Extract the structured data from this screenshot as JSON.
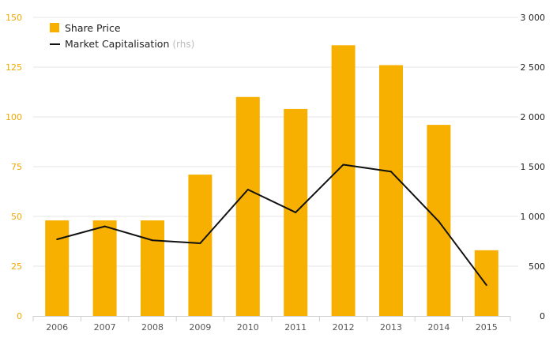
{
  "colors": {
    "bar": "#f8b000",
    "line": "#111111",
    "left_axis_text": "#f0a800",
    "right_axis_text": "#222222",
    "grid": "#e6e6e6"
  },
  "legend": {
    "share_price_label": "Share Price",
    "market_cap_label": "Market Capitalisation",
    "market_cap_note": "(rhs)"
  },
  "chart_data": {
    "type": "bar",
    "categories": [
      "2006",
      "2007",
      "2008",
      "2009",
      "2010",
      "2011",
      "2012",
      "2013",
      "2014",
      "2015"
    ],
    "series": [
      {
        "name": "Share Price",
        "type": "bar",
        "axis": "left",
        "values": [
          48,
          48,
          48,
          71,
          110,
          104,
          136,
          126,
          96,
          33
        ]
      },
      {
        "name": "Market Capitalisation",
        "type": "line",
        "axis": "right",
        "values": [
          770,
          900,
          760,
          730,
          1270,
          1040,
          1520,
          1450,
          950,
          310
        ]
      }
    ],
    "yleft": {
      "ticks": [
        "0",
        "25",
        "50",
        "75",
        "100",
        "125",
        "150"
      ],
      "ylim": [
        0,
        150
      ]
    },
    "yright": {
      "ticks": [
        "0",
        "500",
        "1 000",
        "1 500",
        "2 000",
        "2 500",
        "3 000"
      ],
      "ylim": [
        0,
        3000
      ]
    },
    "grid": true,
    "legend_position": "top-left"
  }
}
